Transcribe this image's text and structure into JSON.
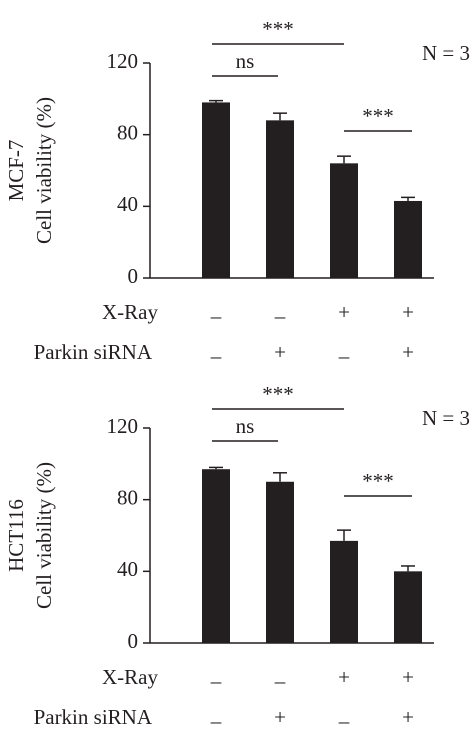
{
  "chart_data": [
    {
      "type": "bar",
      "ylabel": [
        "MCF-7",
        "Cell viability (%)"
      ],
      "categories": [
        null,
        null,
        null,
        null
      ],
      "values": [
        98,
        88,
        64,
        43
      ],
      "errors": [
        1,
        4,
        4,
        2
      ],
      "color": "#231f20",
      "ylim": [
        0,
        120
      ],
      "yticks": [
        0,
        40,
        80,
        120
      ],
      "conditions": [
        {
          "name": "X-Ray",
          "marks": [
            "–",
            "–",
            "+",
            "+"
          ]
        },
        {
          "name": "Parkin siRNA",
          "marks": [
            "–",
            "+",
            "–",
            "+"
          ]
        }
      ],
      "brackets": [
        {
          "label": "***",
          "between": [
            0,
            2
          ]
        },
        {
          "label": "ns",
          "between": [
            0,
            1
          ]
        },
        {
          "label": "***",
          "between": [
            2,
            3
          ]
        }
      ],
      "annotation": "N = 3"
    },
    {
      "type": "bar",
      "ylabel": [
        "HCT116",
        "Cell viability (%)"
      ],
      "categories": [
        null,
        null,
        null,
        null
      ],
      "values": [
        97,
        90,
        57,
        40
      ],
      "errors": [
        1,
        5,
        6,
        3
      ],
      "color": "#231f20",
      "ylim": [
        0,
        120
      ],
      "yticks": [
        0,
        40,
        80,
        120
      ],
      "conditions": [
        {
          "name": "X-Ray",
          "marks": [
            "–",
            "–",
            "+",
            "+"
          ]
        },
        {
          "name": "Parkin siRNA",
          "marks": [
            "–",
            "+",
            "–",
            "+"
          ]
        }
      ],
      "brackets": [
        {
          "label": "***",
          "between": [
            0,
            2
          ]
        },
        {
          "label": "ns",
          "between": [
            0,
            1
          ]
        },
        {
          "label": "***",
          "between": [
            2,
            3
          ]
        }
      ],
      "annotation": "N = 3"
    }
  ]
}
